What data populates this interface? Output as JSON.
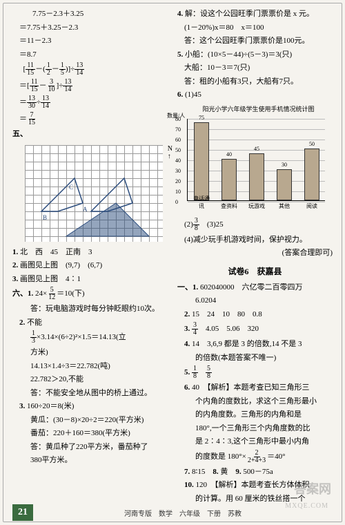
{
  "leftCol": {
    "calc1": [
      "　7.75－2.3＋3.25",
      "＝7.75＋3.25－2.3",
      "＝11－2.3",
      "＝8.7"
    ],
    "calc2_lines": [
      "＝[11/15－(1/2－1/5)]÷13/14",
      "＝[11/15－3/10]÷13/14",
      "＝13/30÷13/14",
      "＝7/15"
    ],
    "gridFigure": {
      "northLabel": "N",
      "arrow": "↑",
      "points": [
        "B",
        "C",
        "A"
      ]
    },
    "item1": "北　西　45　正南　3",
    "item2": "画图见上图　(9,7)　(6,7)",
    "item3": "画图见上图　4∶1",
    "section6_1": "24×5/12＝10(下)",
    "section6_1_ans": "答：玩电脑游戏时每分钟眨眼约10次。",
    "section6_2_head": "不能",
    "section6_2_l1": "1/3×3.14×(6÷2)²×1.5＝14.13(立方米)",
    "section6_2_l2": "14.13×1.4÷3＝22.782(吨)",
    "section6_2_l3": "22.782＞20,不能",
    "section6_2_ans": "答：不能安全地从图中的桥上通过。",
    "section6_3_l1": "160÷20＝8(米)",
    "section6_3_l2": "黄瓜：(30－8)×20÷2＝220(平方米)",
    "section6_3_l3": "番茄：220＋160＝380(平方米)",
    "section6_3_ans1": "答：黄瓜种了220平方米，番茄种了",
    "section6_3_ans2": "380平方米。"
  },
  "rightCol": {
    "item4_head": "解：设这个公园旺季门票票价是 x 元。",
    "item4_l1": "(1－20%)x＝80　x＝100",
    "item4_ans": "答：这个公园旺季门票票价是100元。",
    "item5_l1": "小船：(10×5－44)÷(5－3)＝3(只)",
    "item5_l2": "大船：10－3＝7(只)",
    "item5_ans": "答：租的小船有3只，大船有7只。",
    "item6_1": "(1)45",
    "chart": {
      "title": "阳光小学六年级学生使用手机情况统计图",
      "ylabel": "数量/人",
      "yticks": [
        80,
        70,
        60,
        50,
        40,
        30,
        20,
        10,
        0
      ],
      "bars": [
        {
          "label": "电话通讯",
          "value": 75,
          "color": "#b8a88f"
        },
        {
          "label": "查资料",
          "value": 40,
          "color": "#b8a88f"
        },
        {
          "label": "玩游戏",
          "value": 45,
          "color": "#b8a88f"
        },
        {
          "label": "其他",
          "value": 30,
          "color": "#b8a88f"
        },
        {
          "label": "阅读",
          "value": 50,
          "color": "#b8a88f"
        }
      ],
      "maxY": 80
    },
    "item6_2": "(2)3/8　(3)25",
    "item6_4": "(4)减少玩手机游戏时间，保护视力。",
    "item6_4b": "(答案合理即可)",
    "title6": "试卷6　获嘉县",
    "q1_1a": "602040000　六亿零二百零四万",
    "q1_1b": "6.0204",
    "q2": "15　24　10　80　0.8",
    "q3": "3/4　4.05　5.06　320",
    "q4a": "14　3,6,9 都是 3 的倍数,14 不是 3",
    "q4b": "的倍数(本题答案不唯一)",
    "q5": "1/8　5/8",
    "q6a": "40　【解析】本题考查已知三角形三",
    "q6b": "个内角的度数比，求这个三角形最小",
    "q6c": "的内角度数。三角形的内角和是",
    "q6d": "180°,一个三角形三个内角度数的比",
    "q6e": "是 2∶4∶3,这个三角形中最小内角",
    "q6f": "的度数是 180°×2/(2+4+3)＝40°",
    "q7": "8∶15",
    "q8": "黄",
    "q9": "500－75a",
    "q10a": "120　【解析】本题考查长方体体积",
    "q10b": "的计算。用 60 厘米的铁丝搭一个"
  },
  "footer": {
    "pageNum": "21",
    "text": "河南专版　数学　六年级　下册　苏教"
  },
  "watermark": "答案网",
  "watermark2": "MXQE.COM",
  "labels": {
    "five": "五、",
    "six": "六、",
    "one": "一、",
    "n1": "1.",
    "n2": "2.",
    "n3": "3.",
    "n4": "4.",
    "n5": "5.",
    "n6": "6.",
    "n7": "7.",
    "n8": "8.",
    "n9": "9.",
    "n10": "10."
  }
}
